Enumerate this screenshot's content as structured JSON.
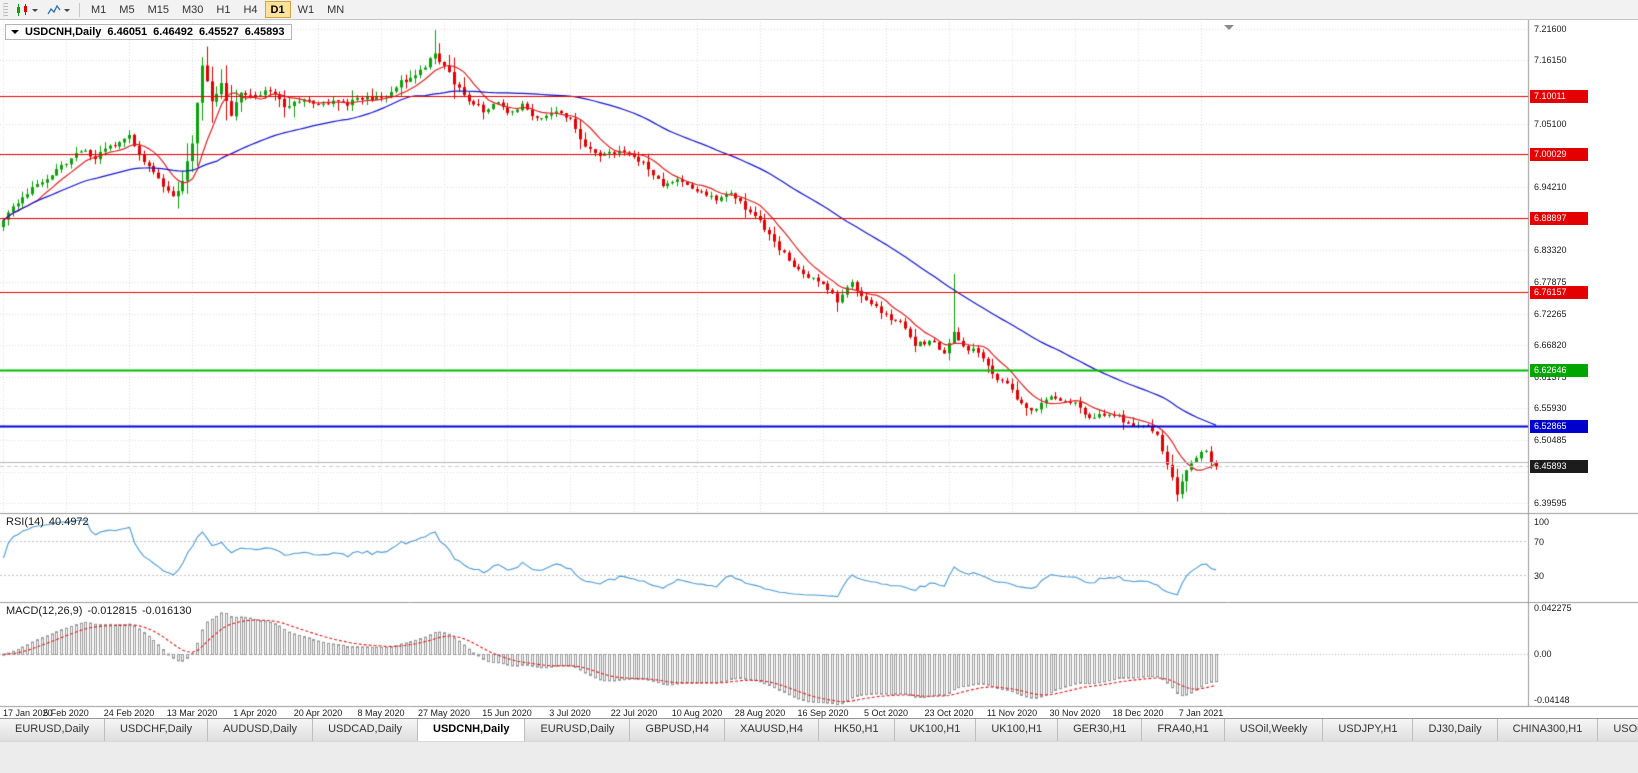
{
  "toolbar": {
    "periods": [
      "M1",
      "M5",
      "M15",
      "M30",
      "H1",
      "H4",
      "D1",
      "W1",
      "MN"
    ],
    "active_period": "D1"
  },
  "chart_header": {
    "symbol_title": "USDCNH,Daily",
    "ohlc": {
      "open": "6.46051",
      "high": "6.46492",
      "low": "6.45527",
      "close": "6.45893"
    }
  },
  "indicators": {
    "rsi_label": "RSI(14)",
    "rsi_value": "40.4972",
    "macd_label": "MACD(12,26,9)",
    "macd_value": "-0.012815",
    "macd_signal_value": "-0.016130"
  },
  "axes": {
    "price_labels": [
      {
        "text": "7.21600",
        "value": 7.216
      },
      {
        "text": "7.16150",
        "value": 7.1615
      },
      {
        "text": "7.05100",
        "value": 7.051
      },
      {
        "text": "6.94210",
        "value": 6.9421
      },
      {
        "text": "6.83320",
        "value": 6.8332
      },
      {
        "text": "6.77875",
        "value": 6.77875
      },
      {
        "text": "6.72265",
        "value": 6.72265
      },
      {
        "text": "6.66820",
        "value": 6.6682
      },
      {
        "text": "6.61375",
        "value": 6.61375
      },
      {
        "text": "6.55930",
        "value": 6.5593
      },
      {
        "text": "6.50485",
        "value": 6.50485
      },
      {
        "text": "6.39595",
        "value": 6.39595
      }
    ],
    "hidden_grid_values": [
      7.106,
      6.997,
      6.8865,
      6.4495
    ],
    "price_badges": [
      {
        "text": "7.10011",
        "value": 7.10011,
        "color": "#e40000",
        "kind": "resistance"
      },
      {
        "text": "7.00029",
        "value": 7.00029,
        "color": "#e40000",
        "kind": "resistance"
      },
      {
        "text": "6.88897",
        "value": 6.88897,
        "color": "#e40000",
        "kind": "resistance"
      },
      {
        "text": "6.76157",
        "value": 6.76157,
        "color": "#e40000",
        "kind": "resistance"
      },
      {
        "text": "6.62646",
        "value": 6.62646,
        "color": "#00a500",
        "kind": "support"
      },
      {
        "text": "6.52865",
        "value": 6.52865,
        "color": "#0000cc",
        "kind": "support"
      },
      {
        "text": "6.45893",
        "value": 6.45893,
        "color": "#1c1c1c",
        "kind": "last-price"
      }
    ],
    "rsi_labels": [
      {
        "text": "100",
        "value": 100
      },
      {
        "text": "70",
        "value": 70
      },
      {
        "text": "30",
        "value": 30
      }
    ],
    "macd_labels": [
      {
        "text": "0.042275",
        "value": 0.042275
      },
      {
        "text": "0.00",
        "value": 0
      },
      {
        "text": "-0.04148",
        "value": -0.04148
      }
    ],
    "date_labels": [
      "17 Jan 2020",
      "5 Feb 2020",
      "24 Feb 2020",
      "13 Mar 2020",
      "1 Apr 2020",
      "20 Apr 2020",
      "8 May 2020",
      "27 May 2020",
      "15 Jun 2020",
      "3 Jul 2020",
      "22 Jul 2020",
      "10 Aug 2020",
      "28 Aug 2020",
      "16 Sep 2020",
      "5 Oct 2020",
      "23 Oct 2020",
      "11 Nov 2020",
      "30 Nov 2020",
      "18 Dec 2020",
      "7 Jan 2021"
    ]
  },
  "chart_data": {
    "type": "candlestick",
    "symbol": "USDCNH",
    "timeframe": "Daily",
    "bar_count": 251,
    "date_bar_interval": 13,
    "ylim": [
      6.38,
      7.228
    ],
    "seed": 20210107,
    "close_anchors": [
      [
        0,
        6.885
      ],
      [
        3,
        6.915
      ],
      [
        6,
        6.943
      ],
      [
        10,
        6.962
      ],
      [
        13,
        6.985
      ],
      [
        16,
        7.005
      ],
      [
        19,
        6.993
      ],
      [
        22,
        7.012
      ],
      [
        26,
        7.032
      ],
      [
        29,
        6.988
      ],
      [
        32,
        6.955
      ],
      [
        35,
        6.925
      ],
      [
        37,
        6.952
      ],
      [
        39,
        7.015
      ],
      [
        41,
        7.155
      ],
      [
        43,
        7.088
      ],
      [
        45,
        7.118
      ],
      [
        47,
        7.068
      ],
      [
        49,
        7.108
      ],
      [
        52,
        7.095
      ],
      [
        55,
        7.112
      ],
      [
        58,
        7.082
      ],
      [
        62,
        7.095
      ],
      [
        65,
        7.082
      ],
      [
        68,
        7.093
      ],
      [
        71,
        7.085
      ],
      [
        74,
        7.098
      ],
      [
        78,
        7.094
      ],
      [
        81,
        7.118
      ],
      [
        84,
        7.133
      ],
      [
        87,
        7.152
      ],
      [
        89,
        7.172
      ],
      [
        91,
        7.152
      ],
      [
        93,
        7.124
      ],
      [
        96,
        7.094
      ],
      [
        99,
        7.076
      ],
      [
        102,
        7.086
      ],
      [
        104,
        7.07
      ],
      [
        107,
        7.084
      ],
      [
        110,
        7.061
      ],
      [
        113,
        7.074
      ],
      [
        117,
        7.064
      ],
      [
        120,
        7.012
      ],
      [
        123,
        6.996
      ],
      [
        126,
        7.004
      ],
      [
        130,
        6.996
      ],
      [
        133,
        6.974
      ],
      [
        136,
        6.946
      ],
      [
        140,
        6.954
      ],
      [
        143,
        6.936
      ],
      [
        147,
        6.921
      ],
      [
        150,
        6.929
      ],
      [
        153,
        6.906
      ],
      [
        156,
        6.886
      ],
      [
        159,
        6.846
      ],
      [
        162,
        6.816
      ],
      [
        165,
        6.791
      ],
      [
        169,
        6.776
      ],
      [
        172,
        6.746
      ],
      [
        175,
        6.774
      ],
      [
        178,
        6.746
      ],
      [
        182,
        6.721
      ],
      [
        185,
        6.706
      ],
      [
        188,
        6.671
      ],
      [
        191,
        6.676
      ],
      [
        194,
        6.656
      ],
      [
        196,
        6.691
      ],
      [
        198,
        6.666
      ],
      [
        201,
        6.659
      ],
      [
        204,
        6.616
      ],
      [
        207,
        6.601
      ],
      [
        210,
        6.566
      ],
      [
        213,
        6.556
      ],
      [
        216,
        6.584
      ],
      [
        219,
        6.571
      ],
      [
        221,
        6.566
      ],
      [
        224,
        6.541
      ],
      [
        227,
        6.551
      ],
      [
        230,
        6.546
      ],
      [
        233,
        6.526
      ],
      [
        236,
        6.531
      ],
      [
        238,
        6.511
      ],
      [
        240,
        6.466
      ],
      [
        242,
        6.411
      ],
      [
        244,
        6.451
      ],
      [
        246,
        6.476
      ],
      [
        248,
        6.489
      ],
      [
        249,
        6.468
      ],
      [
        250,
        6.45893
      ]
    ],
    "wick_overrides": {
      "41": {
        "high": 7.167
      },
      "89": {
        "high": 7.214
      },
      "196": {
        "high": 6.792
      },
      "242": {
        "low": 6.398
      }
    },
    "candle_up_color": "#0da10d",
    "candle_down_color": "#e00000",
    "moving_averages": [
      {
        "period": 8,
        "color": "#dd2626"
      },
      {
        "period": 45,
        "color": "#1717cc"
      }
    ],
    "levels": [
      {
        "value": 7.10011,
        "color": "#ee0000",
        "width": 1.2,
        "dash": false
      },
      {
        "value": 7.00029,
        "color": "#ee0000",
        "width": 1.2,
        "dash": false
      },
      {
        "value": 6.88897,
        "color": "#ee0000",
        "width": 1.2,
        "dash": false
      },
      {
        "value": 6.76157,
        "color": "#ee0000",
        "width": 1.2,
        "dash": false
      },
      {
        "value": 6.62646,
        "color": "#00bb00",
        "width": 2,
        "dash": false
      },
      {
        "value": 6.52865,
        "color": "#0000dd",
        "width": 2,
        "dash": false
      },
      {
        "value": 6.467,
        "color": "#b8b8b8",
        "width": 1,
        "dash": false
      },
      {
        "value": 6.45893,
        "color": "#cccccc",
        "width": 1,
        "dash": true
      }
    ],
    "rsi": {
      "period": 14,
      "color": "#4f9bd5",
      "levels": [
        30,
        70
      ],
      "ylim": [
        0,
        100
      ]
    },
    "macd": {
      "fast": 12,
      "slow": 26,
      "signal": 9,
      "ylim": [
        -0.045,
        0.0455
      ],
      "hist_color": "#9a9a9a",
      "signal_color": "#e02020"
    },
    "grid_color": "#dedede"
  },
  "tabs": {
    "active_index": 4,
    "items": [
      "EURUSD,Daily",
      "USDCHF,Daily",
      "AUDUSD,Daily",
      "USDCAD,Daily",
      "USDCNH,Daily",
      "EURUSD,Daily",
      "GBPUSD,H4",
      "XAUUSD,H4",
      "HK50,H1",
      "UK100,H1",
      "UK100,H1",
      "GER30,H1",
      "FRA40,H1",
      "USOil,Weekly",
      "USDJPY,H1",
      "DJ30,Daily",
      "CHINA300,H1",
      "USOil,"
    ]
  }
}
